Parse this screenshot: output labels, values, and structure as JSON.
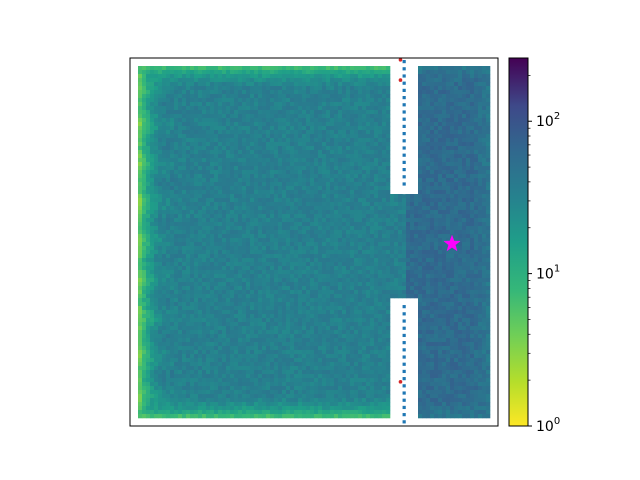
{
  "chart_data": {
    "type": "heatmap",
    "title": "",
    "xlabel": "",
    "ylabel": "",
    "x_ticks": "none",
    "y_ticks": "none",
    "colormap": "viridis_r",
    "color_scale": "log",
    "colorbar": {
      "min": 1,
      "max": 260,
      "tick_values": [
        1,
        10,
        100
      ],
      "tick_labels": [
        {
          "base": "10",
          "exp": "0"
        },
        {
          "base": "10",
          "exp": "1"
        },
        {
          "base": "10",
          "exp": "2"
        }
      ]
    },
    "field": {
      "background_value": 35,
      "edge_value": 4,
      "right_chamber_value": 60,
      "description_note": ""
    },
    "wall": {
      "x": 0.745,
      "gap_y": [
        0.37,
        0.655
      ],
      "wall_marker_color": "#1f77b4",
      "red_points": [
        {
          "x": 0.735,
          "y": 0.005
        },
        {
          "x": 0.735,
          "y": 0.06
        },
        {
          "x": 0.735,
          "y": 0.88
        }
      ],
      "red_color": "#d62728"
    },
    "star": {
      "x": 0.875,
      "y": 0.505,
      "color": "#ff00ff"
    }
  }
}
